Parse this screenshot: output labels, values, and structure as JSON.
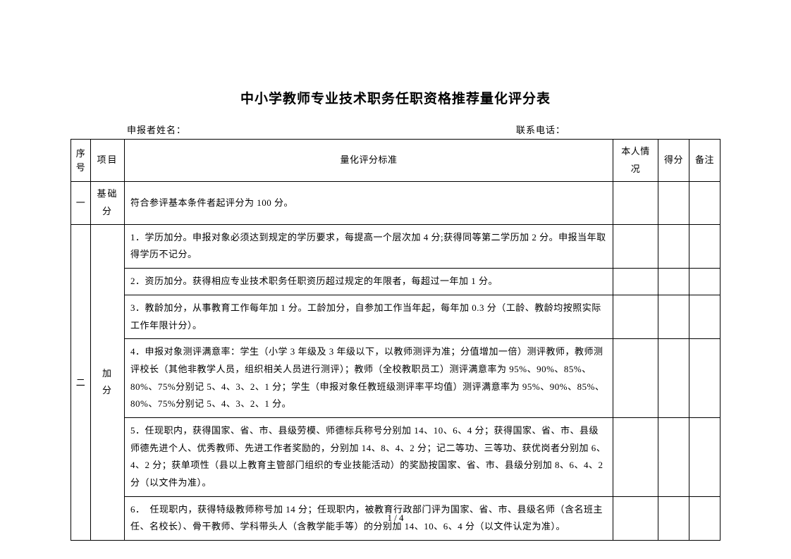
{
  "title": "中小学教师专业技术职务任职资格推荐量化评分表",
  "header": {
    "applicant_label": "申报者姓名：",
    "contact_label": "联系电话："
  },
  "columns": {
    "seq": "序号",
    "item": "项目",
    "criteria": "量化评分标准",
    "status": "本人情况",
    "score": "得分",
    "remark": "备注"
  },
  "rows": {
    "row1": {
      "seq": "一",
      "item": "基础分",
      "criteria": "符合参评基本条件者起评分为 100 分。"
    },
    "row2": {
      "seq": "二",
      "item": "加　分",
      "criteria1": "1．学历加分。申报对象必须达到规定的学历要求，每提高一个层次加 4 分;获得同等第二学历加 2 分。申报当年取得学历不记分。",
      "criteria2": "2．资历加分。获得相应专业技术职务任职资历超过规定的年限者，每超过一年加 1 分。",
      "criteria3": "3．教龄加分，从事教育工作每年加 1 分。工龄加分，自参加工作当年起，每年加 0.3 分（工龄、教龄均按照实际工作年限计分）。",
      "criteria4": "4．申报对象测评满意率：学生（小学 3 年级及 3 年级以下，以教师测评为准；分值增加一倍）测评教师，教师测评校长（其他非教学人员，组织相关人员进行测评）；教师（全校教职员工）测评满意率为 95%、90%、85%、80%、75%分别记 5、4、3、2、1 分；学生（申报对象任教班级测评率平均值）测评满意率为 95%、90%、85%、80%、75%分别记 5、4、3、2、1 分。",
      "criteria5": "5．任现职内，获得国家、省、市、县级劳模、师德标兵称号分别加 14、10、6、4 分；获得国家、省、市、县级师德先进个人、优秀教师、先进工作者奖励的，分别加 14、8、4、2 分；记二等功、三等功、获优岗者分别加 6、4、2 分；获单项性（县以上教育主管部门组织的专业技能活动）的奖励按国家、省、市、县级分别加 8、6、4、2 分（以文件为准）。",
      "criteria6": "6．　任现职内，获得特级教师称号加 14 分；任现职内，被教育行政部门评为国家、省、市、县级名师（含名班主任、名校长）、骨干教师、学科带头人（含教学能手等）的分别加 14、10、6、4 分（以文件认定为准）。"
    }
  },
  "page_number": "1 / 4"
}
